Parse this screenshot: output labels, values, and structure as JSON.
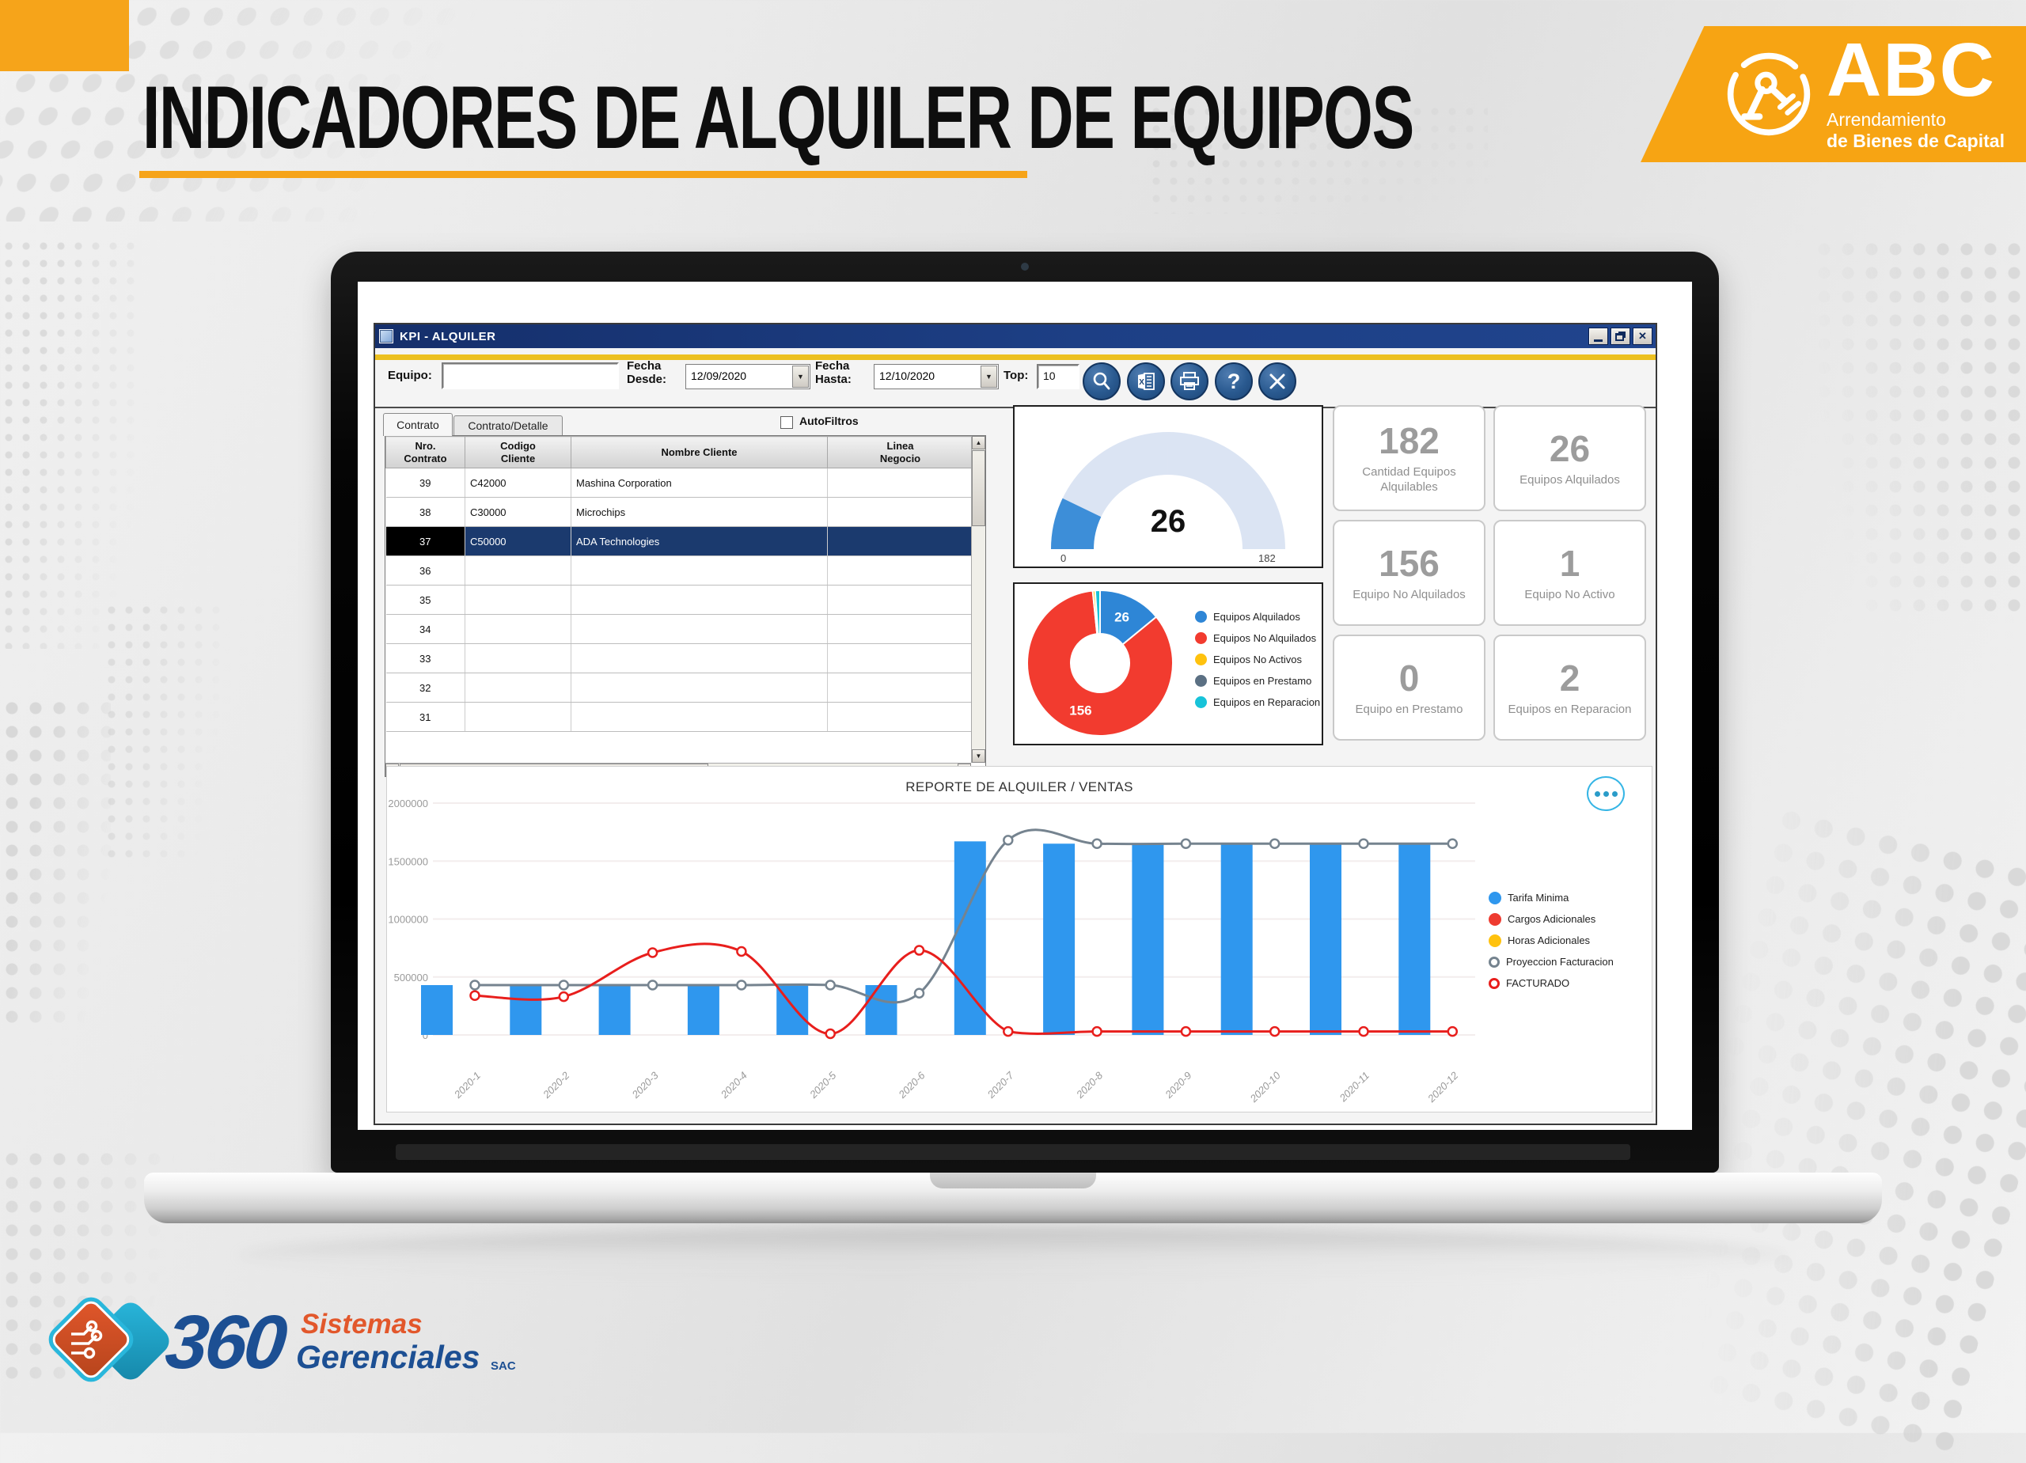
{
  "page": {
    "title": "INDICADORES DE ALQUILER DE EQUIPOS"
  },
  "brand": {
    "name": "ABC",
    "sub1": "Arrendamiento",
    "sub2": "de Bienes de Capital"
  },
  "footer_logo": {
    "number": "360",
    "word1": "Sistemas",
    "word2": "Gerenciales",
    "suffix": "SAC"
  },
  "window": {
    "title": "KPI - ALQUILER",
    "toolbar": {
      "equipo_label": "Equipo:",
      "equipo_value": "",
      "fecha_desde_label": "Fecha\nDesde:",
      "fecha_desde_value": "12/09/2020",
      "fecha_hasta_label": "Fecha\nHasta:",
      "fecha_hasta_value": "12/10/2020",
      "top_label": "Top:",
      "top_value": "10",
      "buttons": [
        "search",
        "excel-export",
        "print",
        "help",
        "close"
      ]
    },
    "tabs": [
      {
        "label": "Contrato",
        "active": true
      },
      {
        "label": "Contrato/Detalle",
        "active": false
      }
    ],
    "autofilters_label": "AutoFiltros",
    "table": {
      "columns": [
        "Nro.\nContrato",
        "Codigo\nCliente",
        "Nombre Cliente",
        "Linea\nNegocio"
      ],
      "rows": [
        [
          "39",
          "C42000",
          "Mashina Corporation",
          ""
        ],
        [
          "38",
          "C30000",
          "Microchips",
          ""
        ],
        [
          "37",
          "C50000",
          "ADA Technologies",
          ""
        ],
        [
          "36",
          "",
          "",
          ""
        ],
        [
          "35",
          "",
          "",
          ""
        ],
        [
          "34",
          "",
          "",
          ""
        ],
        [
          "33",
          "",
          "",
          ""
        ],
        [
          "32",
          "",
          "",
          ""
        ],
        [
          "31",
          "",
          "",
          ""
        ]
      ],
      "selected_index": 2
    },
    "kpis": [
      {
        "value": "182",
        "label": "Cantidad Equipos\nAlquilables"
      },
      {
        "value": "26",
        "label": "Equipos Alquilados"
      },
      {
        "value": "156",
        "label": "Equipo No Alquilados"
      },
      {
        "value": "1",
        "label": "Equipo No Activo"
      },
      {
        "value": "0",
        "label": "Equipo en Prestamo"
      },
      {
        "value": "2",
        "label": "Equipos en Reparacion"
      }
    ]
  },
  "colors": {
    "accent_orange": "#f6a41a",
    "titlebar_navy": "#1d3f85",
    "gold_stripe": "#ecc01f",
    "bar_blue": "#2f97ee",
    "line_red": "#e81e1c",
    "line_gray": "#75838f",
    "gauge_fill": "#3d8ed8",
    "gauge_track": "#dbe4f3",
    "donut_blue": "#2e86d6",
    "donut_red": "#f23b2f",
    "donut_yellow": "#ffc20e",
    "donut_slate": "#5b7083",
    "donut_cyan": "#17c3d9",
    "kebab_cyan": "#35b5e5"
  },
  "chart_data": [
    {
      "type": "gauge",
      "value": 26,
      "min": 0,
      "max": 182,
      "min_label": "0",
      "max_label": "182",
      "fill_color": "#3d8ed8",
      "track_color": "#dbe4f3"
    },
    {
      "type": "pie",
      "subtype": "donut",
      "labels": [
        "Equipos Alquilados",
        "Equipos No Alquilados",
        "Equipos No Activos",
        "Equipos en Prestamo",
        "Equipos en Reparacion"
      ],
      "values": [
        26,
        156,
        1,
        0,
        2
      ],
      "colors": [
        "#2e86d6",
        "#f23b2f",
        "#ffc20e",
        "#5b7083",
        "#17c3d9"
      ],
      "value_labels_shown": [
        "26",
        "156"
      ],
      "legend_position": "right"
    },
    {
      "type": "bar+line",
      "title": "REPORTE DE ALQUILER / VENTAS",
      "categories": [
        "2020-1",
        "2020-2",
        "2020-3",
        "2020-4",
        "2020-5",
        "2020-6",
        "2020-7",
        "2020-8",
        "2020-9",
        "2020-10",
        "2020-11",
        "2020-12"
      ],
      "series": [
        {
          "name": "Tarifa Minima",
          "type": "bar",
          "color": "#2f97ee",
          "values": [
            430000,
            430000,
            430000,
            430000,
            430000,
            430000,
            1670000,
            1650000,
            1650000,
            1650000,
            1650000,
            1650000
          ]
        },
        {
          "name": "Cargos Adicionales",
          "type": "bar",
          "color": "#ee3b30",
          "values": [
            0,
            0,
            0,
            0,
            0,
            0,
            0,
            0,
            0,
            0,
            0,
            0
          ]
        },
        {
          "name": "Horas Adicionales",
          "type": "bar",
          "color": "#ffc20e",
          "values": [
            0,
            0,
            0,
            0,
            0,
            0,
            0,
            0,
            0,
            0,
            0,
            0
          ]
        },
        {
          "name": "Proyeccion Facturacion",
          "type": "line",
          "color": "#75838f",
          "values": [
            430000,
            430000,
            430000,
            430000,
            430000,
            360000,
            1680000,
            1650000,
            1650000,
            1650000,
            1650000,
            1650000
          ]
        },
        {
          "name": "FACTURADO",
          "type": "line",
          "color": "#e81e1c",
          "values": [
            340000,
            330000,
            710000,
            720000,
            10000,
            730000,
            30000,
            30000,
            30000,
            30000,
            30000,
            30000
          ]
        }
      ],
      "ylim": [
        0,
        2000000
      ],
      "yticks": [
        "0",
        "500000",
        "1000000",
        "1500000",
        "2000000"
      ],
      "grid": true,
      "legend_position": "right"
    }
  ]
}
